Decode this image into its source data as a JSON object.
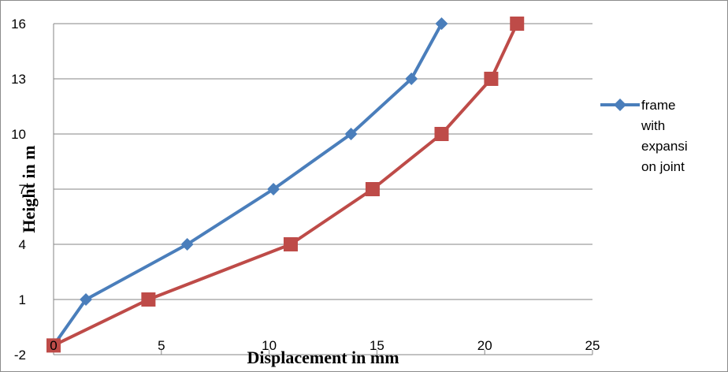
{
  "chart_data": {
    "type": "line",
    "xlabel": "Displacement in mm",
    "ylabel": "Height in m",
    "xlim": [
      0,
      25
    ],
    "ylim": [
      -2,
      16
    ],
    "x_ticks": [
      "0",
      "5",
      "10",
      "15",
      "20",
      "25"
    ],
    "y_ticks": [
      "-2",
      "1",
      "4",
      "7",
      "10",
      "13",
      "16"
    ],
    "y_tick_values": [
      -2,
      1,
      4,
      7,
      10,
      13,
      16
    ],
    "grid": true,
    "legend_position": "right",
    "legend_lines": [
      "frame",
      "with",
      "expansi",
      "on joint"
    ],
    "series": [
      {
        "name": "frame with expansion joint",
        "color": "#4a7ebb",
        "marker": "diamond",
        "x": [
          0,
          1.5,
          6.2,
          10.2,
          13.8,
          16.6,
          18
        ],
        "y": [
          -1.5,
          1,
          4,
          7,
          10,
          13,
          16
        ]
      },
      {
        "color": "#be4b48",
        "marker": "square",
        "x": [
          0,
          4.4,
          11,
          14.8,
          18,
          20.3,
          21.5
        ],
        "y": [
          -1.5,
          1,
          4,
          7,
          10,
          13,
          16
        ]
      }
    ]
  }
}
